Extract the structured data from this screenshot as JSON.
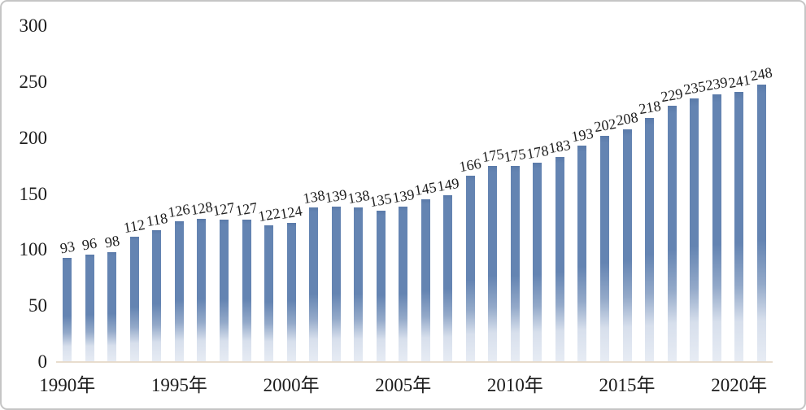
{
  "chart_data": {
    "type": "bar",
    "title": "",
    "xlabel": "",
    "ylabel": "",
    "categories": [
      "1990",
      "1991",
      "1992",
      "1993",
      "1994",
      "1995",
      "1996",
      "1997",
      "1998",
      "1999",
      "2000",
      "2001",
      "2002",
      "2003",
      "2004",
      "2005",
      "2006",
      "2007",
      "2008",
      "2009",
      "2010",
      "2011",
      "2012",
      "2013",
      "2014",
      "2015",
      "2016",
      "2017",
      "2018",
      "2019",
      "2020",
      "2021"
    ],
    "values": [
      93,
      96,
      98,
      112,
      118,
      126,
      128,
      127,
      127,
      122,
      124,
      138,
      139,
      138,
      135,
      139,
      145,
      149,
      166,
      175,
      175,
      178,
      183,
      193,
      202,
      208,
      218,
      229,
      235,
      239,
      241,
      248
    ],
    "ylim": [
      0,
      300
    ],
    "ytick_step": 50,
    "ytick_labels": [
      "0",
      "50",
      "100",
      "150",
      "200",
      "250",
      "300"
    ],
    "xtick_labels": [
      "1990年",
      "1995年",
      "2000年",
      "2005年",
      "2010年",
      "2015年",
      "2020年"
    ],
    "xtick_every": 5,
    "grid": false,
    "legend": "none",
    "data_labels": "value above each bar, slightly rotated counterclockwise",
    "colors": {
      "bar_top": "#6484b2",
      "bar_edge": "#5a7aa9",
      "bar_mid": "#93a9c9",
      "bar_low": "#d7dfec",
      "bar_bottom": "#e7ecf4",
      "axis_line": "#e6d9c9",
      "text": "#1c1c1c",
      "frame_border": "#c5c5c5",
      "background": "#ffffff"
    }
  }
}
